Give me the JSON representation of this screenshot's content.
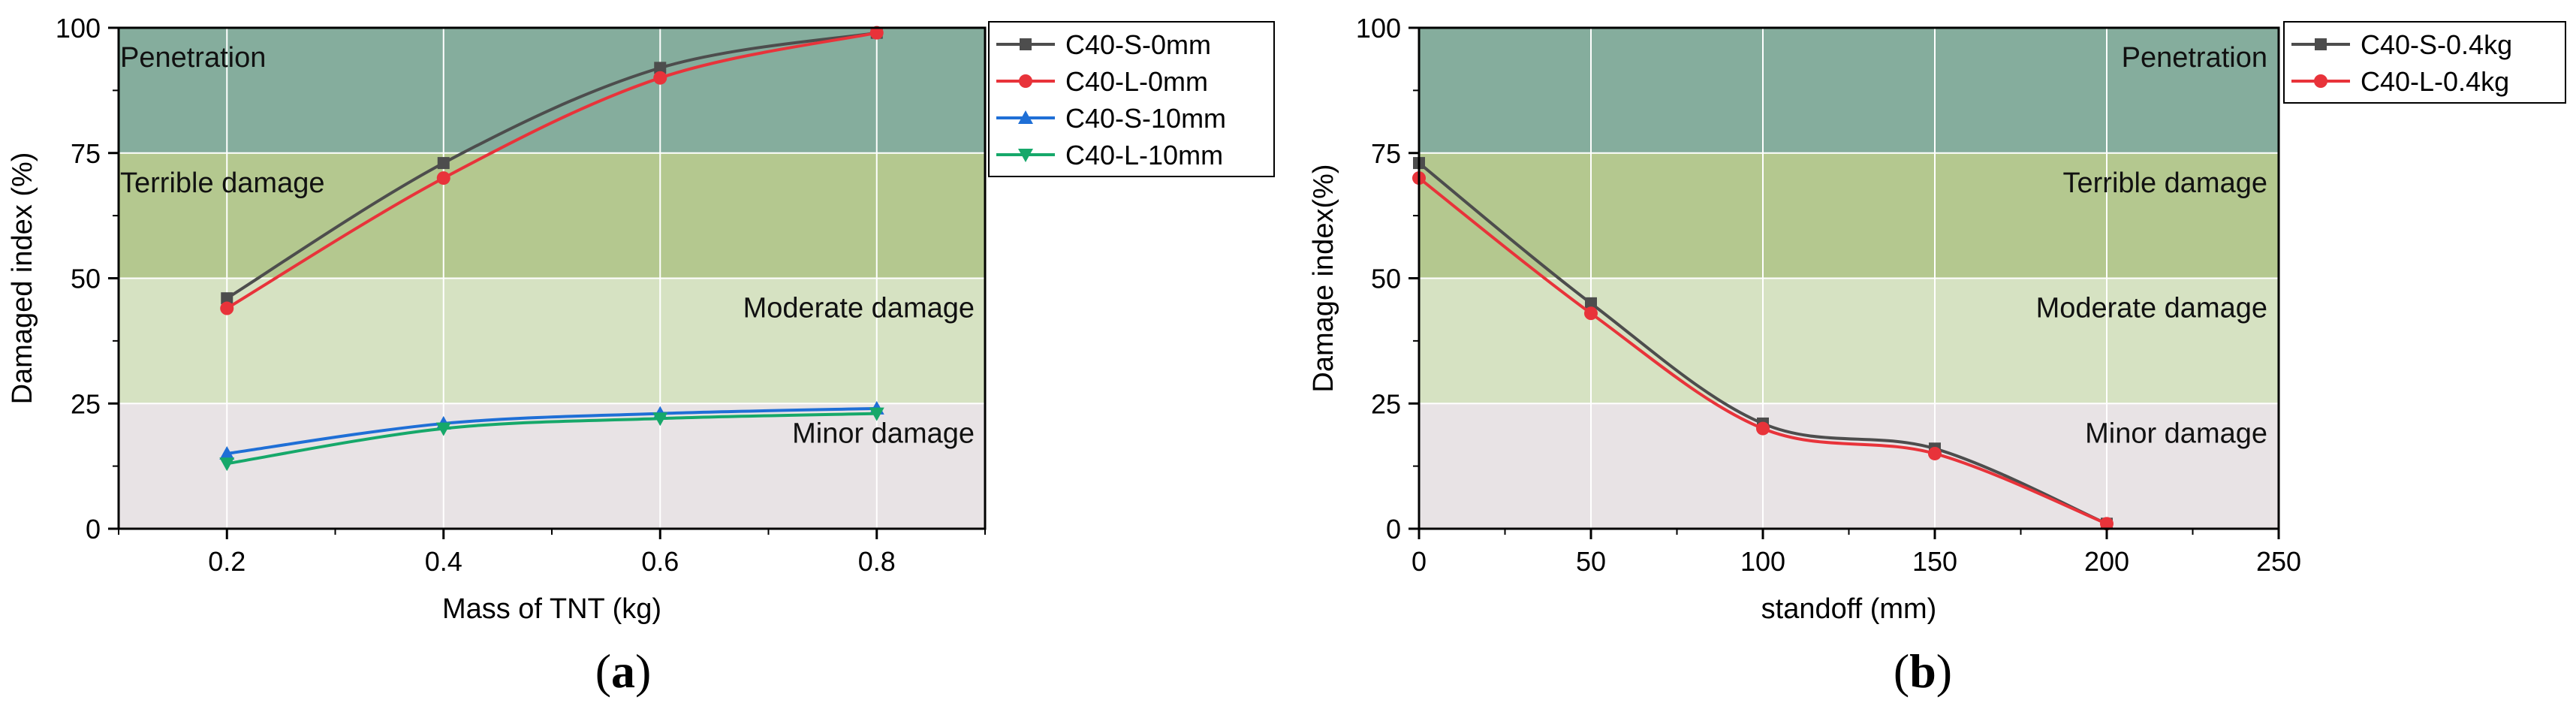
{
  "chart_data": [
    {
      "type": "line",
      "panel_label": "a",
      "xlabel": "Mass of TNT (kg)",
      "ylabel": "Damaged index (%)",
      "xlim": [
        0.1,
        0.9
      ],
      "ylim": [
        0,
        100
      ],
      "xticks": [
        "0.2",
        "0.4",
        "0.6",
        "0.8"
      ],
      "yticks": [
        "0",
        "25",
        "50",
        "75",
        "100"
      ],
      "grid": true,
      "legend_position": "outside-top-right",
      "zones": [
        {
          "label": "Penetration",
          "from": 75,
          "to": 100,
          "color": "#85ad9d",
          "label_align": "left"
        },
        {
          "label": "Terrible damage",
          "from": 50,
          "to": 75,
          "color": "#b4c88f",
          "label_align": "left"
        },
        {
          "label": "Moderate damage",
          "from": 25,
          "to": 50,
          "color": "#d6e2c2",
          "label_align": "right"
        },
        {
          "label": "Minor damage",
          "from": 0,
          "to": 25,
          "color": "#e8e3e5",
          "label_align": "right"
        }
      ],
      "series": [
        {
          "name": "C40-S-0mm",
          "color": "#4d4d4d",
          "marker": "square",
          "x": [
            0.2,
            0.4,
            0.6,
            0.8
          ],
          "y": [
            46,
            73,
            92,
            99
          ]
        },
        {
          "name": "C40-L-0mm",
          "color": "#e8333a",
          "marker": "circle",
          "x": [
            0.2,
            0.4,
            0.6,
            0.8
          ],
          "y": [
            44,
            70,
            90,
            99
          ]
        },
        {
          "name": "C40-S-10mm",
          "color": "#1f6fd6",
          "marker": "triangle-up",
          "x": [
            0.2,
            0.4,
            0.6,
            0.8
          ],
          "y": [
            15,
            21,
            23,
            24
          ]
        },
        {
          "name": "C40-L-10mm",
          "color": "#16a86a",
          "marker": "triangle-down",
          "x": [
            0.2,
            0.4,
            0.6,
            0.8
          ],
          "y": [
            13,
            20,
            22,
            23
          ]
        }
      ]
    },
    {
      "type": "line",
      "panel_label": "b",
      "xlabel": "standoff (mm)",
      "ylabel": "Damage index(%)",
      "xlim": [
        0,
        250
      ],
      "ylim": [
        0,
        100
      ],
      "xticks": [
        "0",
        "50",
        "100",
        "150",
        "200",
        "250"
      ],
      "yticks": [
        "0",
        "25",
        "50",
        "75",
        "100"
      ],
      "grid": true,
      "legend_position": "outside-top-right",
      "zones": [
        {
          "label": "Penetration",
          "from": 75,
          "to": 100,
          "color": "#85ad9d",
          "label_align": "right"
        },
        {
          "label": "Terrible damage",
          "from": 50,
          "to": 75,
          "color": "#b4c88f",
          "label_align": "right"
        },
        {
          "label": "Moderate damage",
          "from": 25,
          "to": 50,
          "color": "#d6e2c2",
          "label_align": "right"
        },
        {
          "label": "Minor damage",
          "from": 0,
          "to": 25,
          "color": "#e8e3e5",
          "label_align": "right"
        }
      ],
      "series": [
        {
          "name": "C40-S-0.4kg",
          "color": "#4d4d4d",
          "marker": "square",
          "x": [
            0,
            50,
            100,
            150,
            200
          ],
          "y": [
            73,
            45,
            21,
            16,
            1
          ]
        },
        {
          "name": "C40-L-0.4kg",
          "color": "#e8333a",
          "marker": "circle",
          "x": [
            0,
            50,
            100,
            150,
            200
          ],
          "y": [
            70,
            43,
            20,
            15,
            1
          ]
        }
      ]
    }
  ]
}
